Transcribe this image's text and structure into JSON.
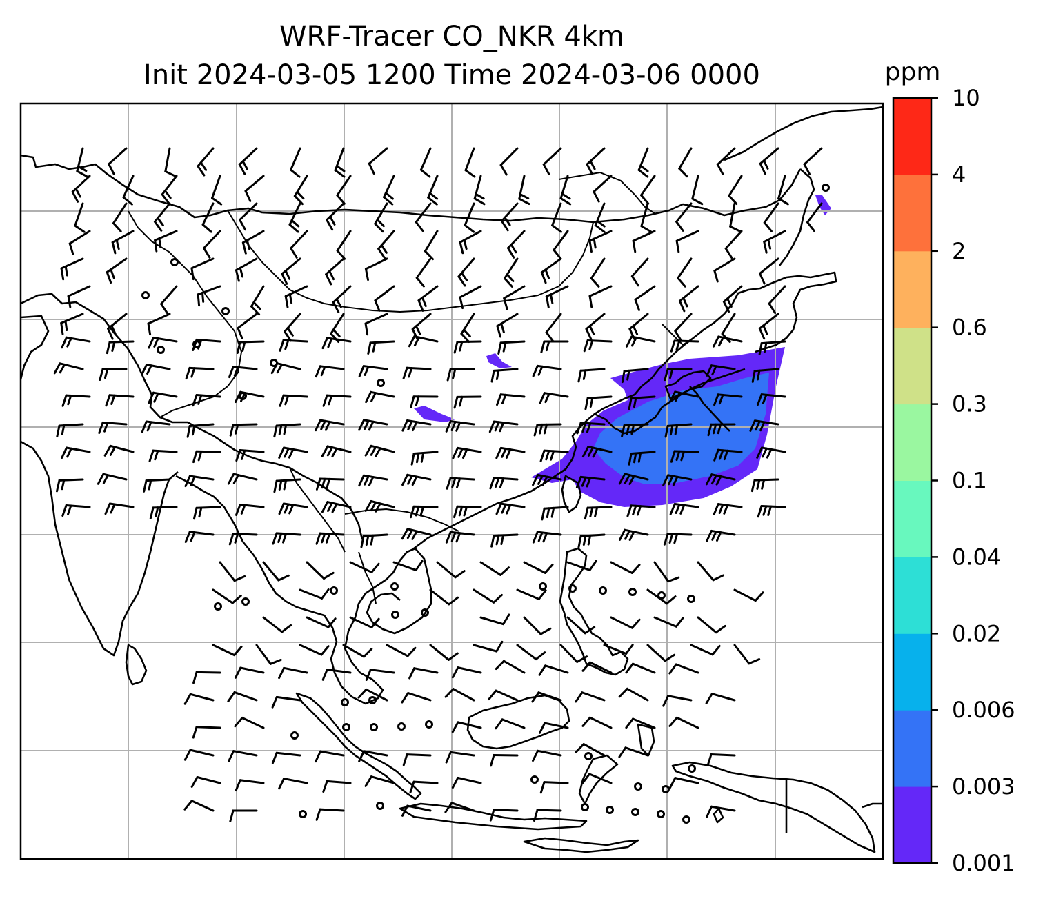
{
  "title": {
    "line1": "WRF-Tracer CO_NKR 4km",
    "line2": "Init 2024-03-05 1200 Time 2024-03-06 0000"
  },
  "colorbar": {
    "unit": "ppm",
    "ticks": [
      "0.001",
      "0.003",
      "0.006",
      "0.02",
      "0.04",
      "0.1",
      "0.3",
      "0.6",
      "2",
      "4",
      "10"
    ],
    "colors": [
      "#6428f8",
      "#3473f6",
      "#07b1ec",
      "#2ddfd6",
      "#68f8be",
      "#9af7a0",
      "#cfe188",
      "#feb15d",
      "#fe713b",
      "#fe2817"
    ]
  },
  "map": {
    "grid": true,
    "plume_colors": {
      "low": "#6428f8",
      "mid": "#3473f6"
    }
  }
}
